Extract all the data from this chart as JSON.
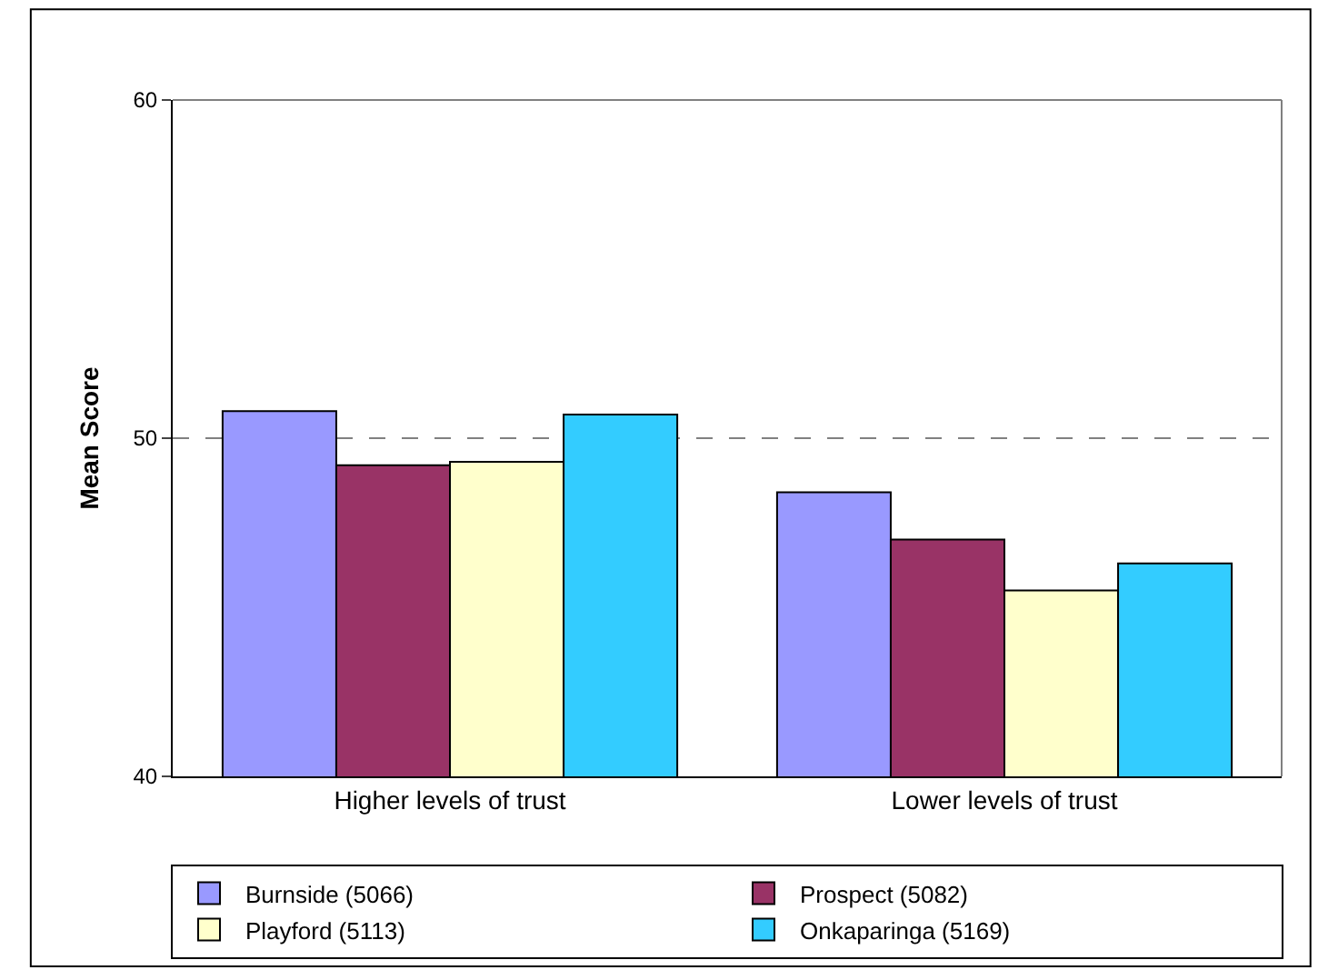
{
  "chart_data": {
    "type": "bar",
    "ylabel": "Mean Score",
    "categories": [
      "Higher levels of trust",
      "Lower levels of trust"
    ],
    "series": [
      {
        "name": "Burnside (5066)",
        "color": "#9999ff",
        "values": [
          50.8,
          48.4
        ]
      },
      {
        "name": "Prospect (5082)",
        "color": "#993366",
        "values": [
          49.2,
          47.0
        ]
      },
      {
        "name": "Playford (5113)",
        "color": "#ffffcc",
        "values": [
          49.3,
          45.5
        ]
      },
      {
        "name": "Onkaparinga (5169)",
        "color": "#33ccff",
        "values": [
          50.7,
          46.3
        ]
      }
    ],
    "ylim": [
      40,
      60
    ],
    "yticks": [
      40,
      50,
      60
    ],
    "grid": "y",
    "legend": "bottom"
  }
}
